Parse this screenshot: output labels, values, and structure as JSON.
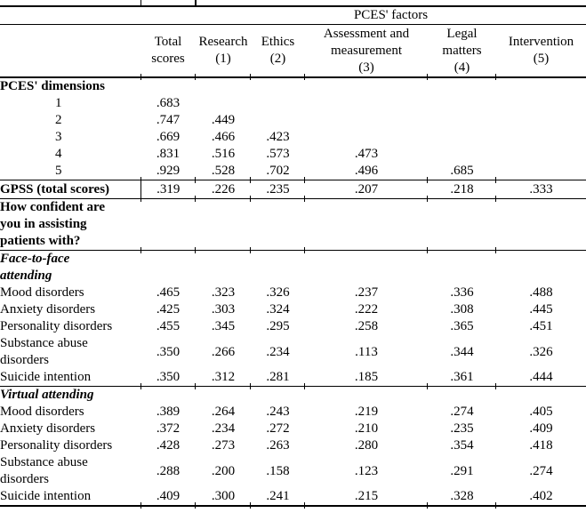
{
  "table": {
    "factors_header": "PCES' factors",
    "col_headers": [
      "Total\nscores",
      "Research\n(1)",
      "Ethics\n(2)",
      "Assessment and\nmeasurement\n(3)",
      "Legal\nmatters\n(4)",
      "Intervention\n(5)"
    ],
    "rows": [
      {
        "label": "PCES' dimensions",
        "style": "bold",
        "values": [
          "",
          "",
          "",
          "",
          "",
          ""
        ]
      },
      {
        "label": "1",
        "style": "indent",
        "values": [
          ".683",
          "",
          "",
          "",
          "",
          ""
        ]
      },
      {
        "label": "2",
        "style": "indent",
        "values": [
          ".747",
          ".449",
          "",
          "",
          "",
          ""
        ]
      },
      {
        "label": "3",
        "style": "indent",
        "values": [
          ".669",
          ".466",
          ".423",
          "",
          "",
          ""
        ]
      },
      {
        "label": "4",
        "style": "indent",
        "values": [
          ".831",
          ".516",
          ".573",
          ".473",
          "",
          ""
        ]
      },
      {
        "label": "5",
        "style": "indent",
        "values": [
          ".929",
          ".528",
          ".702",
          ".496",
          ".685",
          ""
        ]
      },
      {
        "label": "GPSS (total scores)",
        "style": "bold",
        "gpss": true,
        "rule_above": true,
        "rule_below": true,
        "values": [
          ".319",
          ".226",
          ".235",
          ".207",
          ".218",
          ".333"
        ]
      },
      {
        "label": "How confident are\nyou in assisting\npatients with?",
        "style": "bold",
        "rule_below": true,
        "values": [
          "",
          "",
          "",
          "",
          "",
          ""
        ]
      },
      {
        "label": "Face-to-face\nattending",
        "style": "bolditalic",
        "values": [
          "",
          "",
          "",
          "",
          "",
          ""
        ]
      },
      {
        "label": "Mood disorders",
        "style": "",
        "values": [
          ".465",
          ".323",
          ".326",
          ".237",
          ".336",
          ".488"
        ]
      },
      {
        "label": "Anxiety disorders",
        "style": "",
        "values": [
          ".425",
          ".303",
          ".324",
          ".222",
          ".308",
          ".445"
        ]
      },
      {
        "label": "Personality disorders",
        "style": "",
        "values": [
          ".455",
          ".345",
          ".295",
          ".258",
          ".365",
          ".451"
        ]
      },
      {
        "label": "Substance abuse\ndisorders",
        "style": "",
        "values": [
          ".350",
          ".266",
          ".234",
          ".113",
          ".344",
          ".326"
        ]
      },
      {
        "label": "Suicide intention",
        "style": "",
        "rule_below": true,
        "values": [
          ".350",
          ".312",
          ".281",
          ".185",
          ".361",
          ".444"
        ]
      },
      {
        "label": "Virtual attending",
        "style": "bolditalic",
        "values": [
          "",
          "",
          "",
          "",
          "",
          ""
        ]
      },
      {
        "label": "Mood disorders",
        "style": "",
        "values": [
          ".389",
          ".264",
          ".243",
          ".219",
          ".274",
          ".405"
        ]
      },
      {
        "label": "Anxiety disorders",
        "style": "",
        "values": [
          ".372",
          ".234",
          ".272",
          ".210",
          ".235",
          ".409"
        ]
      },
      {
        "label": "Personality disorders",
        "style": "",
        "values": [
          ".428",
          ".273",
          ".263",
          ".280",
          ".354",
          ".418"
        ]
      },
      {
        "label": "Substance abuse\ndisorders",
        "style": "",
        "values": [
          ".288",
          ".200",
          ".158",
          ".123",
          ".291",
          ".274"
        ]
      },
      {
        "label": "Suicide intention",
        "style": "",
        "rule_bottom_thick": true,
        "values": [
          ".409",
          ".300",
          ".241",
          ".215",
          ".328",
          ".402"
        ]
      }
    ]
  }
}
